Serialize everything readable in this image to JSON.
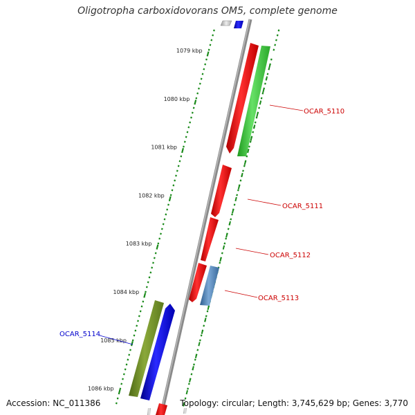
{
  "title": "Oligotropha carboxidovorans OM5, complete genome",
  "footer": {
    "accession": "Accession: NC_011386",
    "summary": "Topology: circular; Length: 3,745,629 bp; Genes: 3,770"
  },
  "colors": {
    "backbone": "#8a8a8a",
    "tick": "#1a8a1a",
    "forward_label": "#cc0000",
    "reverse_label": "#0000cc"
  },
  "ticks": [
    {
      "label": "1079 kbp"
    },
    {
      "label": "1080 kbp"
    },
    {
      "label": "1081 kbp"
    },
    {
      "label": "1082 kbp"
    },
    {
      "label": "1083 kbp"
    },
    {
      "label": "1084 kbp"
    },
    {
      "label": "1085 kbp"
    },
    {
      "label": "1086 kbp"
    }
  ],
  "gene_labels": [
    {
      "text": "OCAR_5110",
      "color": "#cc0000"
    },
    {
      "text": "OCAR_5111",
      "color": "#cc0000"
    },
    {
      "text": "OCAR_5112",
      "color": "#cc0000"
    },
    {
      "text": "OCAR_5113",
      "color": "#cc0000"
    },
    {
      "text": "OCAR_5114",
      "color": "#0000cc"
    }
  ]
}
